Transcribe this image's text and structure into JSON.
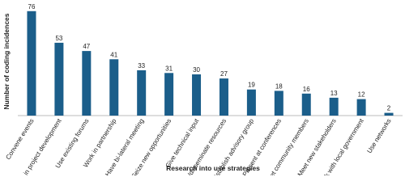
{
  "chart_data": {
    "type": "bar",
    "x_label": "Research into use strategies",
    "y_label": "Number of coding incidences",
    "categories": [
      "Convene events",
      "Involve in project development",
      "Use existing forums",
      "Work in partnership",
      "Have bi-lateral meeting",
      "Seize new opportunities",
      "Give technical input",
      "Create/disseminate resources",
      "Establish advisory group",
      "Present at conferences",
      "Meet community members",
      "Meet new stakeholders",
      "Work with local government",
      "Use networks"
    ],
    "values": [
      76,
      53,
      47,
      41,
      33,
      31,
      30,
      27,
      19,
      18,
      16,
      13,
      12,
      2
    ],
    "color": "#1b5e8a",
    "ylim": [
      0,
      80
    ]
  }
}
